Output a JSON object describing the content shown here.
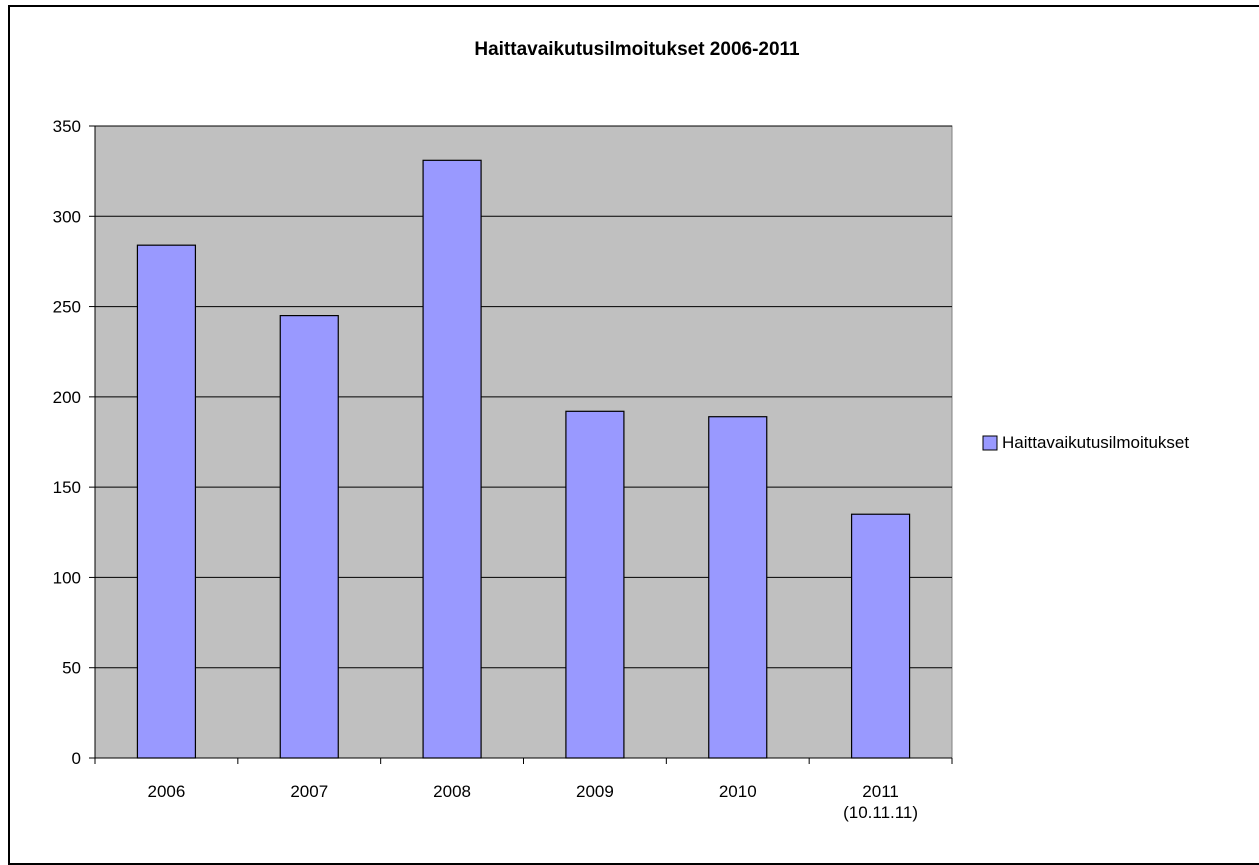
{
  "chart_data": {
    "type": "bar",
    "title": "Haittavaikutusilmoitukset 2006-2011",
    "xlabel": "",
    "ylabel": "",
    "categories": [
      [
        "2006"
      ],
      [
        "2007"
      ],
      [
        "2008"
      ],
      [
        "2009"
      ],
      [
        "2010"
      ],
      [
        "2011",
        "(10.11.11)"
      ]
    ],
    "series": [
      {
        "name": "Haittavaikutusilmoitukset",
        "values": [
          284,
          245,
          331,
          192,
          189,
          135
        ],
        "color": "#9999ff"
      }
    ],
    "ylim": [
      0,
      350
    ],
    "yticks": [
      0,
      50,
      100,
      150,
      200,
      250,
      300,
      350
    ],
    "ytick_labels": [
      "0",
      "50",
      "100",
      "150",
      "200",
      "250",
      "300",
      "350"
    ],
    "grid": true,
    "plot_background": "#c0c0c0",
    "legend_position": "right"
  }
}
